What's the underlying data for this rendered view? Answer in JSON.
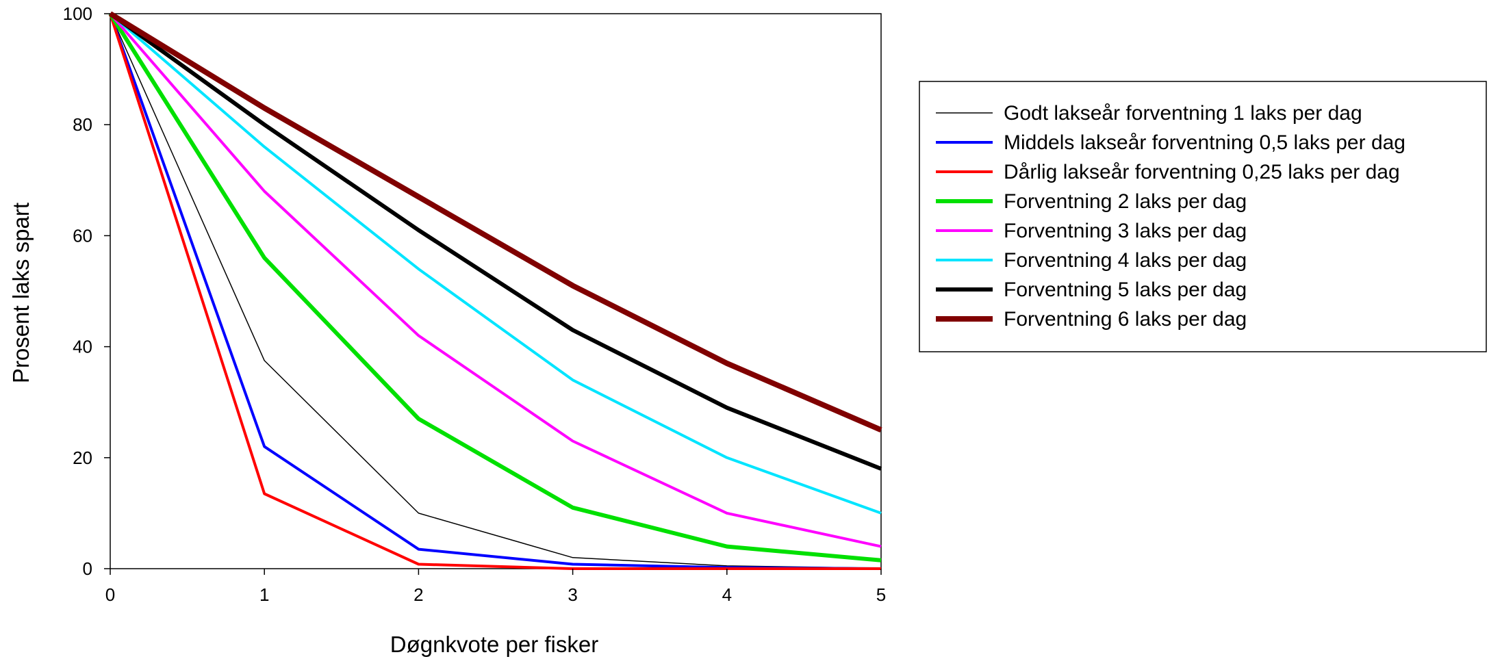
{
  "chart_data": {
    "type": "line",
    "title": "",
    "xlabel": "Døgnkvote per fisker",
    "ylabel": "Prosent laks spart",
    "xlim": [
      0,
      5
    ],
    "ylim": [
      0,
      100
    ],
    "x_ticks": [
      "0",
      "1",
      "2",
      "3",
      "4",
      "5"
    ],
    "y_ticks": [
      "0",
      "20",
      "40",
      "60",
      "80",
      "100"
    ],
    "grid": false,
    "legend_position": "right",
    "x": [
      0,
      1,
      2,
      3,
      4,
      5
    ],
    "series": [
      {
        "name": "Godt lakseår forventning 1 laks per dag",
        "color": "#000000",
        "weight": "thin",
        "values": [
          100,
          37.5,
          10,
          2,
          0.5,
          0.1
        ]
      },
      {
        "name": "Middels lakseår forventning 0,5 laks per dag",
        "color": "#0000ff",
        "weight": "medium",
        "values": [
          100,
          22,
          3.5,
          0.8,
          0.2,
          0
        ]
      },
      {
        "name": "Dårlig lakseår forventning 0,25 laks per dag",
        "color": "#ff0000",
        "weight": "medium",
        "values": [
          100,
          13.5,
          0.8,
          0,
          0,
          0
        ]
      },
      {
        "name": "Forventning 2 laks per dag",
        "color": "#00e000",
        "weight": "thick",
        "values": [
          100,
          56,
          27,
          11,
          4,
          1.5
        ]
      },
      {
        "name": "Forventning 3 laks per dag",
        "color": "#ff00ff",
        "weight": "medium",
        "values": [
          100,
          68,
          42,
          23,
          10,
          4
        ]
      },
      {
        "name": "Forventning 4 laks per dag",
        "color": "#00e5ff",
        "weight": "medium",
        "values": [
          100,
          76,
          54,
          34,
          20,
          10
        ]
      },
      {
        "name": "Forventning 5 laks per dag",
        "color": "#000000",
        "weight": "thick",
        "values": [
          100,
          80,
          61,
          43,
          29,
          18
        ]
      },
      {
        "name": "Forventning 6 laks per dag",
        "color": "#800000",
        "weight": "xthick",
        "values": [
          100,
          83,
          67,
          51,
          37,
          25
        ]
      }
    ]
  }
}
